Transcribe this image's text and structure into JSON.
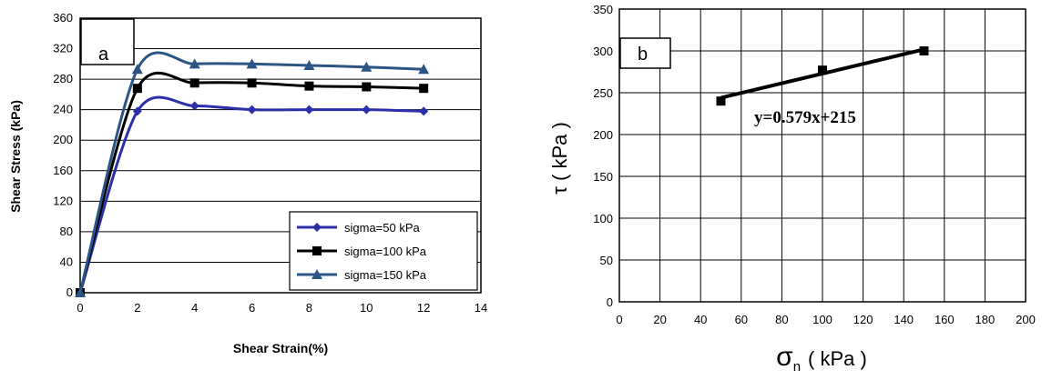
{
  "chart_data": [
    {
      "type": "line",
      "panel_label": "a",
      "xlabel": "Shear Strain(%)",
      "ylabel": "Shear Stress (kPa)",
      "xlim": [
        0,
        14
      ],
      "ylim": [
        0,
        360
      ],
      "xticks": [
        "0",
        "2",
        "4",
        "6",
        "8",
        "10",
        "12",
        "14"
      ],
      "yticks": [
        "0",
        "40",
        "80",
        "120",
        "160",
        "200",
        "240",
        "280",
        "320",
        "360"
      ],
      "grid": "horizontal",
      "legend_position": "bottom-right",
      "smooth": true,
      "series": [
        {
          "name": "sigma=50 kPa",
          "color": "#2b2fa8",
          "marker": "diamond",
          "x": [
            0,
            2,
            4,
            6,
            8,
            10,
            12
          ],
          "y": [
            0,
            238,
            245,
            240,
            240,
            240,
            238
          ]
        },
        {
          "name": "sigma=100 kPa",
          "color": "#000000",
          "marker": "square",
          "x": [
            0,
            2,
            4,
            6,
            8,
            10,
            12
          ],
          "y": [
            0,
            268,
            275,
            275,
            271,
            270,
            268
          ]
        },
        {
          "name": "sigma=150 kPa",
          "color": "#2a5585",
          "marker": "triangle",
          "x": [
            0,
            2,
            4,
            6,
            8,
            10,
            12
          ],
          "y": [
            0,
            293,
            300,
            300,
            298,
            296,
            293
          ]
        }
      ]
    },
    {
      "type": "scatter",
      "panel_label": "b",
      "xlabel_symbol": "σ",
      "xlabel_sub": "n",
      "xlabel_unit": "( kPa )",
      "ylabel": "τ ( kPa )",
      "xlim": [
        0,
        200
      ],
      "ylim": [
        0,
        350
      ],
      "xticks": [
        "0",
        "20",
        "40",
        "60",
        "80",
        "100",
        "120",
        "140",
        "160",
        "180",
        "200"
      ],
      "yticks": [
        "0",
        "50",
        "100",
        "150",
        "200",
        "250",
        "300",
        "350"
      ],
      "grid": "both",
      "equation": "y=0.579x+215",
      "series": [
        {
          "color": "#000000",
          "marker": "square",
          "x": [
            50,
            100,
            150
          ],
          "y": [
            240,
            277,
            300
          ]
        }
      ],
      "fit_line": {
        "slope": 0.579,
        "intercept": 215,
        "x_range": [
          50,
          150
        ]
      }
    }
  ]
}
